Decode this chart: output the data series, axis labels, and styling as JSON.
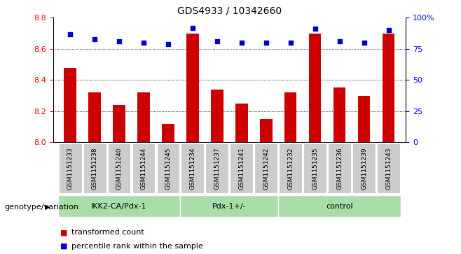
{
  "title": "GDS4933 / 10342660",
  "categories": [
    "GSM1151233",
    "GSM1151238",
    "GSM1151240",
    "GSM1151244",
    "GSM1151245",
    "GSM1151234",
    "GSM1151237",
    "GSM1151241",
    "GSM1151242",
    "GSM1151232",
    "GSM1151235",
    "GSM1151236",
    "GSM1151239",
    "GSM1151243"
  ],
  "bar_values": [
    8.48,
    8.32,
    8.24,
    8.32,
    8.12,
    8.7,
    8.34,
    8.25,
    8.15,
    8.32,
    8.7,
    8.35,
    8.3,
    8.7
  ],
  "percentile_values": [
    87,
    83,
    81,
    80,
    79,
    92,
    81,
    80,
    80,
    80,
    91,
    81,
    80,
    90
  ],
  "bar_color": "#cc0000",
  "percentile_color": "#0000cc",
  "ylim_left": [
    8.0,
    8.8
  ],
  "ylim_right": [
    0,
    100
  ],
  "yticks_left": [
    8.0,
    8.2,
    8.4,
    8.6,
    8.8
  ],
  "yticks_right": [
    0,
    25,
    50,
    75,
    100
  ],
  "ytick_labels_right": [
    "0",
    "25",
    "50",
    "75",
    "100%"
  ],
  "groups": [
    {
      "label": "IKK2-CA/Pdx-1",
      "start": 0,
      "end": 4
    },
    {
      "label": "Pdx-1+/-",
      "start": 5,
      "end": 8
    },
    {
      "label": "control",
      "start": 9,
      "end": 13
    }
  ],
  "xlabel_left": "genotype/variation",
  "legend_items": [
    "transformed count",
    "percentile rank within the sample"
  ],
  "legend_colors": [
    "#cc0000",
    "#0000cc"
  ],
  "bar_width": 0.5,
  "xticklabel_bg": "#cccccc",
  "group_bg_color": "#aaddaa"
}
